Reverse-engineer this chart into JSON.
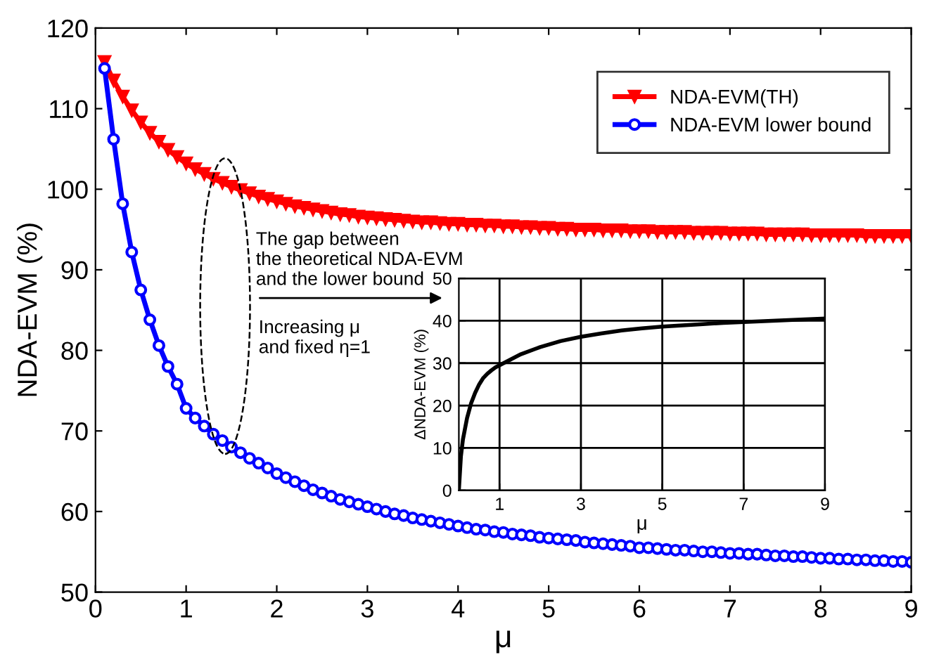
{
  "chart_data": [
    {
      "type": "line",
      "xlabel": "μ",
      "ylabel": "NDA-EVM (%)",
      "xlim": [
        0,
        9
      ],
      "ylim": [
        50,
        120
      ],
      "xticks": [
        0,
        1,
        2,
        3,
        4,
        5,
        6,
        7,
        8,
        9
      ],
      "yticks": [
        50,
        60,
        70,
        80,
        90,
        100,
        110,
        120
      ],
      "grid": false,
      "legend": "top right",
      "line_style": "solid",
      "x": [
        0.1,
        0.2,
        0.3,
        0.4,
        0.5,
        0.6,
        0.7,
        0.8,
        0.9,
        1.0,
        1.1,
        1.2,
        1.3,
        1.4,
        1.5,
        1.6,
        1.7,
        1.8,
        1.9,
        2.0,
        2.1,
        2.2,
        2.3,
        2.4,
        2.5,
        2.6,
        2.7,
        2.8,
        2.9,
        3.0,
        3.1,
        3.2,
        3.3,
        3.4,
        3.5,
        3.6,
        3.7,
        3.8,
        3.9,
        4.0,
        4.1,
        4.2,
        4.3,
        4.4,
        4.5,
        4.6,
        4.7,
        4.8,
        4.9,
        5.0,
        5.1,
        5.2,
        5.3,
        5.4,
        5.5,
        5.6,
        5.7,
        5.8,
        5.9,
        6.0,
        6.1,
        6.2,
        6.3,
        6.4,
        6.5,
        6.6,
        6.7,
        6.8,
        6.9,
        7.0,
        7.1,
        7.2,
        7.3,
        7.4,
        7.5,
        7.6,
        7.7,
        7.8,
        7.9,
        8.0,
        8.1,
        8.2,
        8.3,
        8.4,
        8.5,
        8.6,
        8.7,
        8.8,
        8.9,
        9.0
      ],
      "series": [
        {
          "name": "NDA-EVM(TH)",
          "color": "#ff0000",
          "marker": "triangle",
          "values": [
            115.8,
            113.5,
            111.5,
            109.8,
            108.3,
            107.0,
            105.9,
            104.9,
            104.0,
            103.2,
            102.5,
            101.9,
            101.3,
            100.8,
            100.3,
            99.9,
            99.5,
            99.1,
            98.8,
            98.5,
            98.2,
            97.9,
            97.7,
            97.5,
            97.3,
            97.1,
            96.9,
            96.8,
            96.6,
            96.5,
            96.4,
            96.3,
            96.2,
            96.1,
            96.0,
            95.9,
            95.9,
            95.8,
            95.7,
            95.7,
            95.6,
            95.6,
            95.5,
            95.5,
            95.4,
            95.4,
            95.3,
            95.3,
            95.2,
            95.2,
            95.1,
            95.1,
            95.0,
            95.0,
            95.0,
            94.9,
            94.9,
            94.9,
            94.8,
            94.8,
            94.8,
            94.7,
            94.7,
            94.7,
            94.7,
            94.6,
            94.6,
            94.6,
            94.6,
            94.5,
            94.5,
            94.5,
            94.5,
            94.4,
            94.4,
            94.4,
            94.4,
            94.4,
            94.3,
            94.3,
            94.3,
            94.3,
            94.3,
            94.3,
            94.2,
            94.2,
            94.2,
            94.2,
            94.2,
            94.2
          ]
        },
        {
          "name": "NDA-EVM lower bound",
          "color": "#0000ff",
          "marker": "circle",
          "values": [
            115.0,
            106.2,
            98.2,
            92.2,
            87.5,
            83.8,
            80.6,
            78.0,
            75.8,
            72.8,
            71.6,
            70.6,
            69.6,
            68.8,
            68.0,
            67.3,
            66.6,
            66.0,
            65.4,
            64.7,
            64.2,
            63.7,
            63.2,
            62.7,
            62.3,
            61.9,
            61.5,
            61.2,
            60.9,
            60.6,
            60.3,
            60.0,
            59.7,
            59.5,
            59.2,
            59.0,
            58.8,
            58.6,
            58.4,
            58.2,
            58.0,
            57.8,
            57.7,
            57.5,
            57.4,
            57.2,
            57.1,
            57.0,
            56.8,
            56.7,
            56.6,
            56.5,
            56.4,
            56.2,
            56.1,
            56.0,
            55.9,
            55.8,
            55.7,
            55.5,
            55.5,
            55.4,
            55.3,
            55.2,
            55.2,
            55.1,
            55.0,
            55.0,
            54.9,
            54.8,
            54.8,
            54.7,
            54.7,
            54.6,
            54.5,
            54.5,
            54.4,
            54.4,
            54.3,
            54.2,
            54.2,
            54.1,
            54.1,
            54.0,
            54.0,
            53.9,
            53.9,
            53.8,
            53.8,
            53.7
          ]
        }
      ],
      "annotations": [
        "The gap between\nthe theoretical NDA-EVM\nand the lower bound",
        "Increasing μ\nand fixed η=1"
      ]
    },
    {
      "type": "line",
      "xlabel": "μ",
      "ylabel": "ΔNDA-EVM (%)",
      "xlim": [
        0,
        9
      ],
      "ylim": [
        0,
        50
      ],
      "xticks": [
        1,
        3,
        5,
        7,
        9
      ],
      "yticks": [
        0,
        10,
        20,
        30,
        40,
        50
      ],
      "grid": true,
      "line_style": "solid",
      "x": [
        0,
        0.05,
        0.1,
        0.2,
        0.3,
        0.4,
        0.5,
        0.6,
        0.7,
        0.8,
        0.9,
        1.0,
        1.2,
        1.5,
        2,
        2.5,
        3,
        3.5,
        4,
        4.5,
        5,
        5.5,
        6,
        6.5,
        7,
        7.5,
        8,
        8.5,
        9
      ],
      "series": [
        {
          "color": "#000000",
          "values": [
            0,
            8,
            12,
            17,
            20.5,
            23,
            25,
            26.5,
            27.5,
            28.3,
            29,
            29.5,
            30.5,
            32,
            33.8,
            35.2,
            36.2,
            37,
            37.7,
            38.2,
            38.6,
            38.9,
            39.2,
            39.5,
            39.7,
            39.9,
            40.1,
            40.3,
            40.5
          ]
        }
      ]
    }
  ]
}
